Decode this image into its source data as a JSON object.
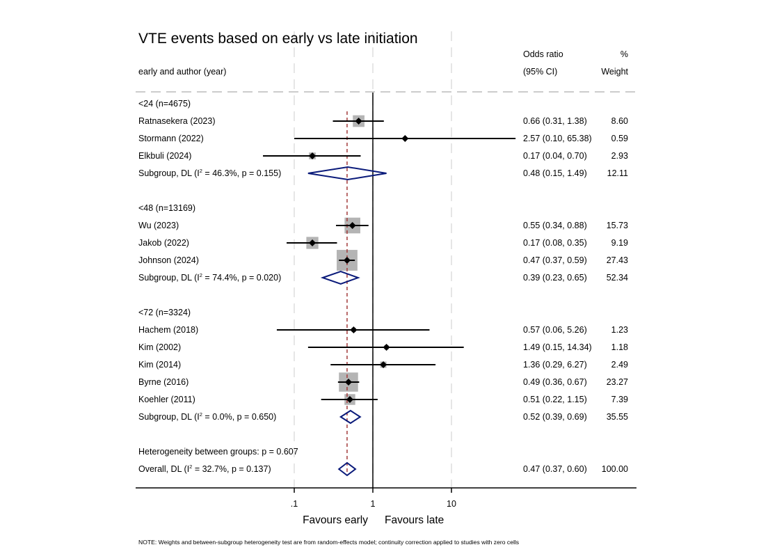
{
  "chart_data": {
    "type": "forest",
    "title": "VTE events based on early vs late initiation",
    "column_headers": {
      "label": "early and author (year)",
      "effect_line1": "Odds ratio",
      "effect_line2": "(95% CI)",
      "weight_line1": "%",
      "weight_line2": "Weight"
    },
    "x_axis": {
      "scale": "log",
      "range": [
        0.015,
        50
      ],
      "ticks": [
        {
          "value": 0.1,
          "label": ".1"
        },
        {
          "value": 1,
          "label": "1"
        },
        {
          "value": 10,
          "label": "10"
        }
      ],
      "gridlines": [
        0.1,
        1,
        10
      ],
      "null_line": 1,
      "overall_line": 0.47,
      "favours_left": "Favours early",
      "favours_right": "Favours late"
    },
    "rows": [
      {
        "type": "group",
        "label": "<24 (n=4675)"
      },
      {
        "type": "study",
        "label": "Ratnasekera (2023)",
        "or": 0.66,
        "lo": 0.31,
        "hi": 1.38,
        "text": "0.66 (0.31, 1.38)",
        "weight": 8.6,
        "weight_text": "8.60",
        "group_weight_share": 0.086
      },
      {
        "type": "study",
        "label": "Stormann (2022)",
        "or": 2.57,
        "lo": 0.1,
        "hi": 65.38,
        "text": "2.57 (0.10, 65.38)",
        "weight": 0.59,
        "weight_text": "0.59"
      },
      {
        "type": "study",
        "label": "Elkbuli (2024)",
        "or": 0.17,
        "lo": 0.04,
        "hi": 0.7,
        "text": "0.17 (0.04, 0.70)",
        "weight": 2.93,
        "weight_text": "2.93"
      },
      {
        "type": "subgroup",
        "label": "Subgroup, DL (I",
        "sup": "2",
        "label_rest": " = 46.3%, p = 0.155)",
        "or": 0.48,
        "lo": 0.15,
        "hi": 1.49,
        "text": "0.48 (0.15, 1.49)",
        "weight": 12.11,
        "weight_text": "12.11"
      },
      {
        "type": "spacer"
      },
      {
        "type": "group",
        "label": "<48 (n=13169)"
      },
      {
        "type": "study",
        "label": "Wu (2023)",
        "or": 0.55,
        "lo": 0.34,
        "hi": 0.88,
        "text": "0.55 (0.34, 0.88)",
        "weight": 15.73,
        "weight_text": "15.73"
      },
      {
        "type": "study",
        "label": "Jakob (2022)",
        "or": 0.17,
        "lo": 0.08,
        "hi": 0.35,
        "text": "0.17 (0.08, 0.35)",
        "weight": 9.19,
        "weight_text": "9.19"
      },
      {
        "type": "study",
        "label": "Johnson (2024)",
        "or": 0.47,
        "lo": 0.37,
        "hi": 0.59,
        "text": "0.47 (0.37, 0.59)",
        "weight": 27.43,
        "weight_text": "27.43"
      },
      {
        "type": "subgroup",
        "label": "Subgroup, DL (I",
        "sup": "2",
        "label_rest": " = 74.4%, p = 0.020)",
        "or": 0.39,
        "lo": 0.23,
        "hi": 0.65,
        "text": "0.39 (0.23, 0.65)",
        "weight": 52.34,
        "weight_text": "52.34"
      },
      {
        "type": "spacer"
      },
      {
        "type": "group",
        "label": "<72 (n=3324)"
      },
      {
        "type": "study",
        "label": "Hachem (2018)",
        "or": 0.57,
        "lo": 0.06,
        "hi": 5.26,
        "text": "0.57 (0.06, 5.26)",
        "weight": 1.23,
        "weight_text": "1.23"
      },
      {
        "type": "study",
        "label": "Kim (2002)",
        "or": 1.49,
        "lo": 0.15,
        "hi": 14.34,
        "text": "1.49 (0.15, 14.34)",
        "weight": 1.18,
        "weight_text": "1.18"
      },
      {
        "type": "study",
        "label": "Kim (2014)",
        "or": 1.36,
        "lo": 0.29,
        "hi": 6.27,
        "text": "1.36 (0.29, 6.27)",
        "weight": 2.49,
        "weight_text": "2.49"
      },
      {
        "type": "study",
        "label": "Byrne (2016)",
        "or": 0.49,
        "lo": 0.36,
        "hi": 0.67,
        "text": "0.49 (0.36, 0.67)",
        "weight": 23.27,
        "weight_text": "23.27"
      },
      {
        "type": "study",
        "label": "Koehler (2011)",
        "or": 0.51,
        "lo": 0.22,
        "hi": 1.15,
        "text": "0.51 (0.22, 1.15)",
        "weight": 7.39,
        "weight_text": "7.39"
      },
      {
        "type": "subgroup",
        "label": "Subgroup, DL (I",
        "sup": "2",
        "label_rest": " = 0.0%, p = 0.650)",
        "or": 0.52,
        "lo": 0.39,
        "hi": 0.69,
        "text": "0.52 (0.39, 0.69)",
        "weight": 35.55,
        "weight_text": "35.55"
      },
      {
        "type": "spacer"
      },
      {
        "type": "note",
        "label": "Heterogeneity between groups: p = 0.607"
      },
      {
        "type": "overall",
        "label": "Overall, DL (I",
        "sup": "2",
        "label_rest": " = 32.7%, p = 0.137)",
        "or": 0.47,
        "lo": 0.37,
        "hi": 0.6,
        "text": "0.47 (0.37, 0.60)",
        "weight": 100.0,
        "weight_text": "100.00"
      }
    ],
    "footnote": "NOTE: Weights and between-subgroup heterogeneity test are from random-effects model; continuity correction applied to studies with zero cells",
    "colors": {
      "box": "#b4b4b4",
      "ci_line": "#000000",
      "point": "#000000",
      "diamond": "#0a1a7a",
      "overall_line": "#a33a3a",
      "grid": "#e6e6e6",
      "separator": "#bbbbbb"
    }
  }
}
